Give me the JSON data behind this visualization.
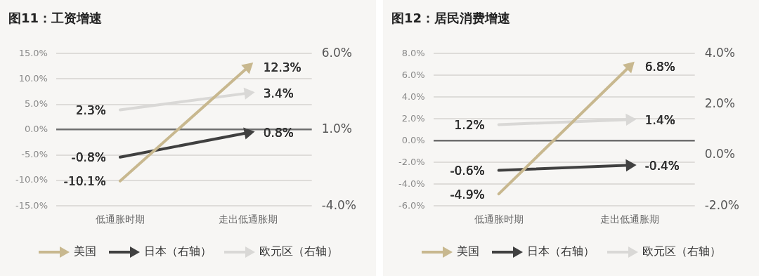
{
  "chart_data": [
    {
      "type": "line",
      "title": "图11：工资增速",
      "categories": [
        "低通胀时期",
        "走出低通胀期"
      ],
      "series": [
        {
          "name": "美国",
          "color": "#c8b88f",
          "values": [
            -10.1,
            12.3
          ],
          "value_labels": [
            "-10.1%",
            "12.3%"
          ]
        },
        {
          "name": "日本（右轴）",
          "color": "#404040",
          "axis": "y2",
          "values": [
            -0.8,
            0.8
          ],
          "value_labels": [
            "-0.8%",
            "0.8%"
          ]
        },
        {
          "name": "欧元区（右轴）",
          "color": "#d9d8d6",
          "axis": "y2",
          "values": [
            2.3,
            3.4
          ],
          "value_labels": [
            "2.3%",
            "3.4%"
          ]
        }
      ],
      "ylim": [
        -15,
        15
      ],
      "yticks": [
        {
          "value": -15,
          "label": "-15.0%"
        },
        {
          "value": -10,
          "label": "-10.0%"
        },
        {
          "value": -5,
          "label": "-5.0%"
        },
        {
          "value": 0,
          "label": "0.0%"
        },
        {
          "value": 5,
          "label": "5.0%"
        },
        {
          "value": 10,
          "label": "10.0%"
        },
        {
          "value": 15,
          "label": "15.0%"
        }
      ],
      "y2lim": [
        -4,
        6
      ],
      "y2ticks": [
        {
          "value": -4,
          "label": "-4.0%"
        },
        {
          "value": 1,
          "label": "1.0%"
        },
        {
          "value": 6,
          "label": "6.0%"
        }
      ],
      "grid": "y",
      "legend": "bottom",
      "marker": "triangle"
    },
    {
      "type": "line",
      "title": "图12：居民消费增速",
      "categories": [
        "低通胀时期",
        "走出低通胀期"
      ],
      "series": [
        {
          "name": "美国",
          "color": "#c8b88f",
          "values": [
            -4.9,
            6.8
          ],
          "value_labels": [
            "-4.9%",
            "6.8%"
          ]
        },
        {
          "name": "日本（右轴）",
          "color": "#404040",
          "axis": "y2",
          "values": [
            -0.6,
            -0.4
          ],
          "value_labels": [
            "-0.6%",
            "-0.4%"
          ]
        },
        {
          "name": "欧元区（右轴）",
          "color": "#d9d8d6",
          "axis": "y2",
          "values": [
            1.2,
            1.4
          ],
          "value_labels": [
            "1.2%",
            "1.4%"
          ]
        }
      ],
      "ylim": [
        -6,
        8
      ],
      "yticks": [
        {
          "value": -6,
          "label": "-6.0%"
        },
        {
          "value": -4,
          "label": "-4.0%"
        },
        {
          "value": -2,
          "label": "-2.0%"
        },
        {
          "value": 0,
          "label": "0.0%"
        },
        {
          "value": 2,
          "label": "2.0%"
        },
        {
          "value": 4,
          "label": "4.0%"
        },
        {
          "value": 6,
          "label": "6.0%"
        },
        {
          "value": 8,
          "label": "8.0%"
        }
      ],
      "y2lim": [
        -2,
        4
      ],
      "y2ticks": [
        {
          "value": -2,
          "label": "-2.0%"
        },
        {
          "value": 0,
          "label": "0.0%"
        },
        {
          "value": 2,
          "label": "2.0%"
        },
        {
          "value": 4,
          "label": "4.0%"
        }
      ],
      "grid": "y",
      "legend": "bottom",
      "marker": "triangle"
    }
  ]
}
